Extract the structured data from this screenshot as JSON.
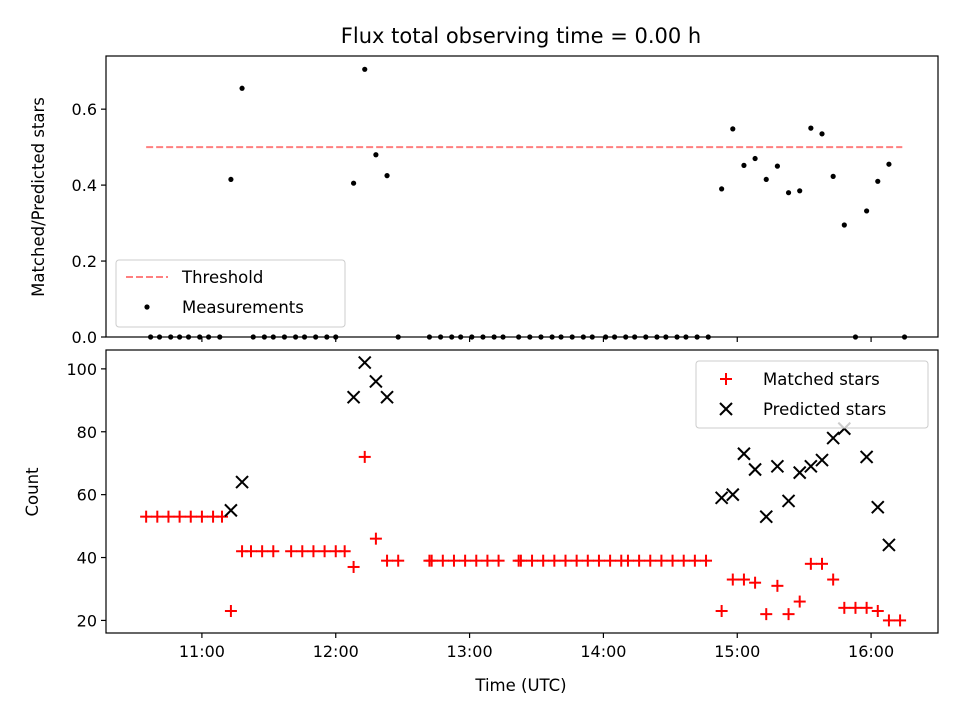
{
  "chart_data": [
    {
      "type": "scatter",
      "title": "Flux total observing time = 0.00 h",
      "xlabel": "",
      "ylabel": "Matched/Predicted stars",
      "xlim": [
        "10:17",
        "16:30"
      ],
      "ylim": [
        0,
        0.74
      ],
      "y_ticks": [
        0.0,
        0.2,
        0.4,
        0.6
      ],
      "y_tick_labels": [
        "0.0",
        "0.2",
        "0.4",
        "0.6"
      ],
      "x_ticks": [
        "11:00",
        "12:00",
        "13:00",
        "14:00",
        "15:00",
        "16:00"
      ],
      "grid": false,
      "legend_position": "lower-left",
      "threshold": {
        "name": "Threshold",
        "y": 0.5,
        "x_start": "10:35",
        "x_end": "16:14",
        "color": "#ff7f7f"
      },
      "series": [
        {
          "name": "Measurements",
          "color": "#000000",
          "marker": "dot",
          "points": [
            {
              "x": "10:37",
              "y": 0
            },
            {
              "x": "10:41",
              "y": 0
            },
            {
              "x": "10:46",
              "y": 0
            },
            {
              "x": "10:50",
              "y": 0
            },
            {
              "x": "10:54",
              "y": 0
            },
            {
              "x": "10:59",
              "y": 0
            },
            {
              "x": "11:03",
              "y": 0
            },
            {
              "x": "11:08",
              "y": 0
            },
            {
              "x": "11:13",
              "y": 0.415
            },
            {
              "x": "11:18",
              "y": 0.655
            },
            {
              "x": "11:23",
              "y": 0
            },
            {
              "x": "11:28",
              "y": 0
            },
            {
              "x": "11:32",
              "y": 0
            },
            {
              "x": "11:37",
              "y": 0
            },
            {
              "x": "11:42",
              "y": 0
            },
            {
              "x": "11:46",
              "y": 0
            },
            {
              "x": "11:51",
              "y": 0
            },
            {
              "x": "11:56",
              "y": 0
            },
            {
              "x": "12:00",
              "y": 0
            },
            {
              "x": "12:08",
              "y": 0.405
            },
            {
              "x": "12:13",
              "y": 0.705
            },
            {
              "x": "12:18",
              "y": 0.48
            },
            {
              "x": "12:23",
              "y": 0.425
            },
            {
              "x": "12:28",
              "y": 0
            },
            {
              "x": "12:42",
              "y": 0
            },
            {
              "x": "12:47",
              "y": 0
            },
            {
              "x": "12:52",
              "y": 0
            },
            {
              "x": "12:56",
              "y": 0
            },
            {
              "x": "13:01",
              "y": 0
            },
            {
              "x": "13:06",
              "y": 0
            },
            {
              "x": "13:11",
              "y": 0
            },
            {
              "x": "13:15",
              "y": 0
            },
            {
              "x": "13:22",
              "y": 0
            },
            {
              "x": "13:27",
              "y": 0
            },
            {
              "x": "13:32",
              "y": 0
            },
            {
              "x": "13:37",
              "y": 0
            },
            {
              "x": "13:41",
              "y": 0
            },
            {
              "x": "13:46",
              "y": 0
            },
            {
              "x": "13:51",
              "y": 0
            },
            {
              "x": "13:55",
              "y": 0
            },
            {
              "x": "14:01",
              "y": 0
            },
            {
              "x": "14:05",
              "y": 0
            },
            {
              "x": "14:10",
              "y": 0
            },
            {
              "x": "14:14",
              "y": 0
            },
            {
              "x": "14:19",
              "y": 0
            },
            {
              "x": "14:24",
              "y": 0
            },
            {
              "x": "14:28",
              "y": 0
            },
            {
              "x": "14:33",
              "y": 0
            },
            {
              "x": "14:37",
              "y": 0
            },
            {
              "x": "14:42",
              "y": 0
            },
            {
              "x": "14:47",
              "y": 0
            },
            {
              "x": "14:53",
              "y": 0.39
            },
            {
              "x": "14:58",
              "y": 0.548
            },
            {
              "x": "15:03",
              "y": 0.452
            },
            {
              "x": "15:08",
              "y": 0.47
            },
            {
              "x": "15:13",
              "y": 0.415
            },
            {
              "x": "15:18",
              "y": 0.45
            },
            {
              "x": "15:23",
              "y": 0.38
            },
            {
              "x": "15:28",
              "y": 0.385
            },
            {
              "x": "15:33",
              "y": 0.55
            },
            {
              "x": "15:38",
              "y": 0.535
            },
            {
              "x": "15:43",
              "y": 0.423
            },
            {
              "x": "15:48",
              "y": 0.295
            },
            {
              "x": "15:53",
              "y": 0
            },
            {
              "x": "15:58",
              "y": 0.332
            },
            {
              "x": "16:03",
              "y": 0.41
            },
            {
              "x": "16:08",
              "y": 0.455
            },
            {
              "x": "16:15",
              "y": 0
            }
          ]
        }
      ]
    },
    {
      "type": "scatter",
      "title": "",
      "xlabel": "Time (UTC)",
      "ylabel": "Count",
      "xlim": [
        "10:17",
        "16:30"
      ],
      "ylim": [
        16,
        106
      ],
      "y_ticks": [
        20,
        40,
        60,
        80,
        100
      ],
      "y_tick_labels": [
        "20",
        "40",
        "60",
        "80",
        "100"
      ],
      "x_ticks": [
        "11:00",
        "12:00",
        "13:00",
        "14:00",
        "15:00",
        "16:00"
      ],
      "grid": false,
      "legend_position": "upper-right",
      "series": [
        {
          "name": "Matched stars",
          "color": "#ff0000",
          "marker": "plus",
          "points": [
            {
              "x": "10:35",
              "y": 53
            },
            {
              "x": "10:40",
              "y": 53
            },
            {
              "x": "10:45",
              "y": 53
            },
            {
              "x": "10:50",
              "y": 53
            },
            {
              "x": "10:55",
              "y": 53
            },
            {
              "x": "11:00",
              "y": 53
            },
            {
              "x": "11:05",
              "y": 53
            },
            {
              "x": "11:09",
              "y": 53
            },
            {
              "x": "11:13",
              "y": 23
            },
            {
              "x": "11:18",
              "y": 42
            },
            {
              "x": "11:22",
              "y": 42
            },
            {
              "x": "11:27",
              "y": 42
            },
            {
              "x": "11:32",
              "y": 42
            },
            {
              "x": "11:40",
              "y": 42
            },
            {
              "x": "11:45",
              "y": 42
            },
            {
              "x": "11:50",
              "y": 42
            },
            {
              "x": "11:55",
              "y": 42
            },
            {
              "x": "12:00",
              "y": 42
            },
            {
              "x": "12:04",
              "y": 42
            },
            {
              "x": "12:08",
              "y": 37
            },
            {
              "x": "12:13",
              "y": 72
            },
            {
              "x": "12:18",
              "y": 46
            },
            {
              "x": "12:23",
              "y": 39
            },
            {
              "x": "12:28",
              "y": 39
            },
            {
              "x": "12:42",
              "y": 39
            },
            {
              "x": "12:43",
              "y": 39
            },
            {
              "x": "12:48",
              "y": 39
            },
            {
              "x": "12:53",
              "y": 39
            },
            {
              "x": "12:58",
              "y": 39
            },
            {
              "x": "13:03",
              "y": 39
            },
            {
              "x": "13:08",
              "y": 39
            },
            {
              "x": "13:13",
              "y": 39
            },
            {
              "x": "13:22",
              "y": 39
            },
            {
              "x": "13:23",
              "y": 39
            },
            {
              "x": "13:28",
              "y": 39
            },
            {
              "x": "13:33",
              "y": 39
            },
            {
              "x": "13:38",
              "y": 39
            },
            {
              "x": "13:43",
              "y": 39
            },
            {
              "x": "13:48",
              "y": 39
            },
            {
              "x": "13:53",
              "y": 39
            },
            {
              "x": "13:58",
              "y": 39
            },
            {
              "x": "14:03",
              "y": 39
            },
            {
              "x": "14:08",
              "y": 39
            },
            {
              "x": "14:11",
              "y": 39
            },
            {
              "x": "14:16",
              "y": 39
            },
            {
              "x": "14:21",
              "y": 39
            },
            {
              "x": "14:26",
              "y": 39
            },
            {
              "x": "14:31",
              "y": 39
            },
            {
              "x": "14:36",
              "y": 39
            },
            {
              "x": "14:41",
              "y": 39
            },
            {
              "x": "14:46",
              "y": 39
            },
            {
              "x": "14:53",
              "y": 23
            },
            {
              "x": "14:58",
              "y": 33
            },
            {
              "x": "15:03",
              "y": 33
            },
            {
              "x": "15:08",
              "y": 32
            },
            {
              "x": "15:13",
              "y": 22
            },
            {
              "x": "15:18",
              "y": 31
            },
            {
              "x": "15:23",
              "y": 22
            },
            {
              "x": "15:28",
              "y": 26
            },
            {
              "x": "15:33",
              "y": 38
            },
            {
              "x": "15:38",
              "y": 38
            },
            {
              "x": "15:43",
              "y": 33
            },
            {
              "x": "15:48",
              "y": 24
            },
            {
              "x": "15:53",
              "y": 24
            },
            {
              "x": "15:58",
              "y": 24
            },
            {
              "x": "16:03",
              "y": 23
            },
            {
              "x": "16:08",
              "y": 20
            },
            {
              "x": "16:13",
              "y": 20
            }
          ]
        },
        {
          "name": "Predicted stars",
          "color": "#000000",
          "marker": "x",
          "points": [
            {
              "x": "11:13",
              "y": 55
            },
            {
              "x": "11:18",
              "y": 64
            },
            {
              "x": "12:08",
              "y": 91
            },
            {
              "x": "12:13",
              "y": 102
            },
            {
              "x": "12:18",
              "y": 96
            },
            {
              "x": "12:23",
              "y": 91
            },
            {
              "x": "14:53",
              "y": 59
            },
            {
              "x": "14:58",
              "y": 60
            },
            {
              "x": "15:03",
              "y": 73
            },
            {
              "x": "15:08",
              "y": 68
            },
            {
              "x": "15:13",
              "y": 53
            },
            {
              "x": "15:18",
              "y": 69
            },
            {
              "x": "15:23",
              "y": 58
            },
            {
              "x": "15:28",
              "y": 67
            },
            {
              "x": "15:33",
              "y": 69
            },
            {
              "x": "15:38",
              "y": 71
            },
            {
              "x": "15:43",
              "y": 78
            },
            {
              "x": "15:48",
              "y": 81
            },
            {
              "x": "15:58",
              "y": 72
            },
            {
              "x": "16:03",
              "y": 56
            },
            {
              "x": "16:08",
              "y": 44
            }
          ]
        }
      ]
    }
  ]
}
